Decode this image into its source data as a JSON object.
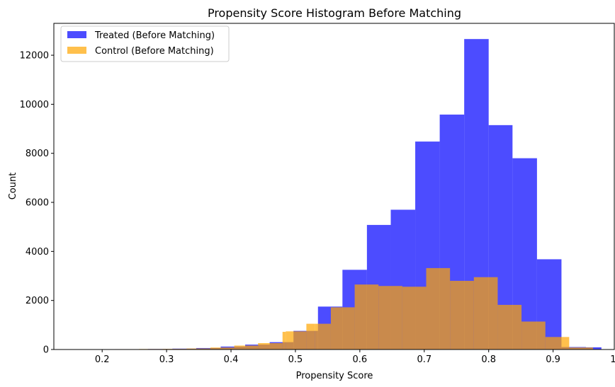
{
  "chart_data": {
    "type": "bar",
    "title": "Propensity Score Histogram Before Matching",
    "xlabel": "Propensity Score",
    "ylabel": "Count",
    "xlim": [
      0.125,
      0.995
    ],
    "ylim": [
      0,
      13300
    ],
    "x_ticks": [
      0.2,
      0.3,
      0.4,
      0.5,
      0.6,
      0.7,
      0.8,
      0.9,
      1.0
    ],
    "x_tick_labels": [
      "0.2",
      "0.3",
      "0.4",
      "0.5",
      "0.6",
      "0.7",
      "0.8",
      "0.9",
      "1.0"
    ],
    "y_ticks": [
      0,
      2000,
      4000,
      6000,
      8000,
      10000,
      12000
    ],
    "y_tick_labels": [
      "0",
      "2000",
      "4000",
      "6000",
      "8000",
      "10000",
      "12000"
    ],
    "grid": false,
    "legend_position": "top-left",
    "series": [
      {
        "name": "Treated (Before Matching)",
        "color": "#0000ff",
        "opacity": 0.7,
        "bins": [
          [
            0.157,
            0.195,
            2
          ],
          [
            0.195,
            0.233,
            5
          ],
          [
            0.233,
            0.271,
            10
          ],
          [
            0.271,
            0.309,
            20
          ],
          [
            0.309,
            0.346,
            35
          ],
          [
            0.346,
            0.384,
            60
          ],
          [
            0.384,
            0.422,
            120
          ],
          [
            0.422,
            0.46,
            200
          ],
          [
            0.46,
            0.497,
            300
          ],
          [
            0.497,
            0.535,
            760
          ],
          [
            0.535,
            0.573,
            1750
          ],
          [
            0.573,
            0.611,
            3250
          ],
          [
            0.611,
            0.648,
            5080
          ],
          [
            0.648,
            0.686,
            5700
          ],
          [
            0.686,
            0.724,
            8480
          ],
          [
            0.724,
            0.762,
            9580
          ],
          [
            0.762,
            0.8,
            12660
          ],
          [
            0.8,
            0.837,
            9150
          ],
          [
            0.837,
            0.875,
            7800
          ],
          [
            0.875,
            0.913,
            3680
          ],
          [
            0.913,
            0.951,
            100
          ],
          [
            0.951,
            0.975,
            90
          ]
        ]
      },
      {
        "name": "Control (Before Matching)",
        "color": "#ffa500",
        "opacity": 0.7,
        "bins": [
          [
            0.22,
            0.257,
            15
          ],
          [
            0.257,
            0.294,
            20
          ],
          [
            0.294,
            0.331,
            25
          ],
          [
            0.331,
            0.368,
            40
          ],
          [
            0.368,
            0.405,
            80
          ],
          [
            0.405,
            0.442,
            160
          ],
          [
            0.442,
            0.48,
            260
          ],
          [
            0.48,
            0.485,
            720
          ],
          [
            0.485,
            0.517,
            740
          ],
          [
            0.517,
            0.53,
            1050
          ],
          [
            0.53,
            0.555,
            1050
          ],
          [
            0.555,
            0.592,
            1720
          ],
          [
            0.592,
            0.629,
            2650
          ],
          [
            0.629,
            0.666,
            2590
          ],
          [
            0.666,
            0.703,
            2560
          ],
          [
            0.703,
            0.74,
            3320
          ],
          [
            0.74,
            0.777,
            2800
          ],
          [
            0.777,
            0.814,
            2950
          ],
          [
            0.814,
            0.851,
            1820
          ],
          [
            0.851,
            0.888,
            1140
          ],
          [
            0.888,
            0.925,
            510
          ],
          [
            0.925,
            0.962,
            80
          ]
        ]
      }
    ]
  }
}
